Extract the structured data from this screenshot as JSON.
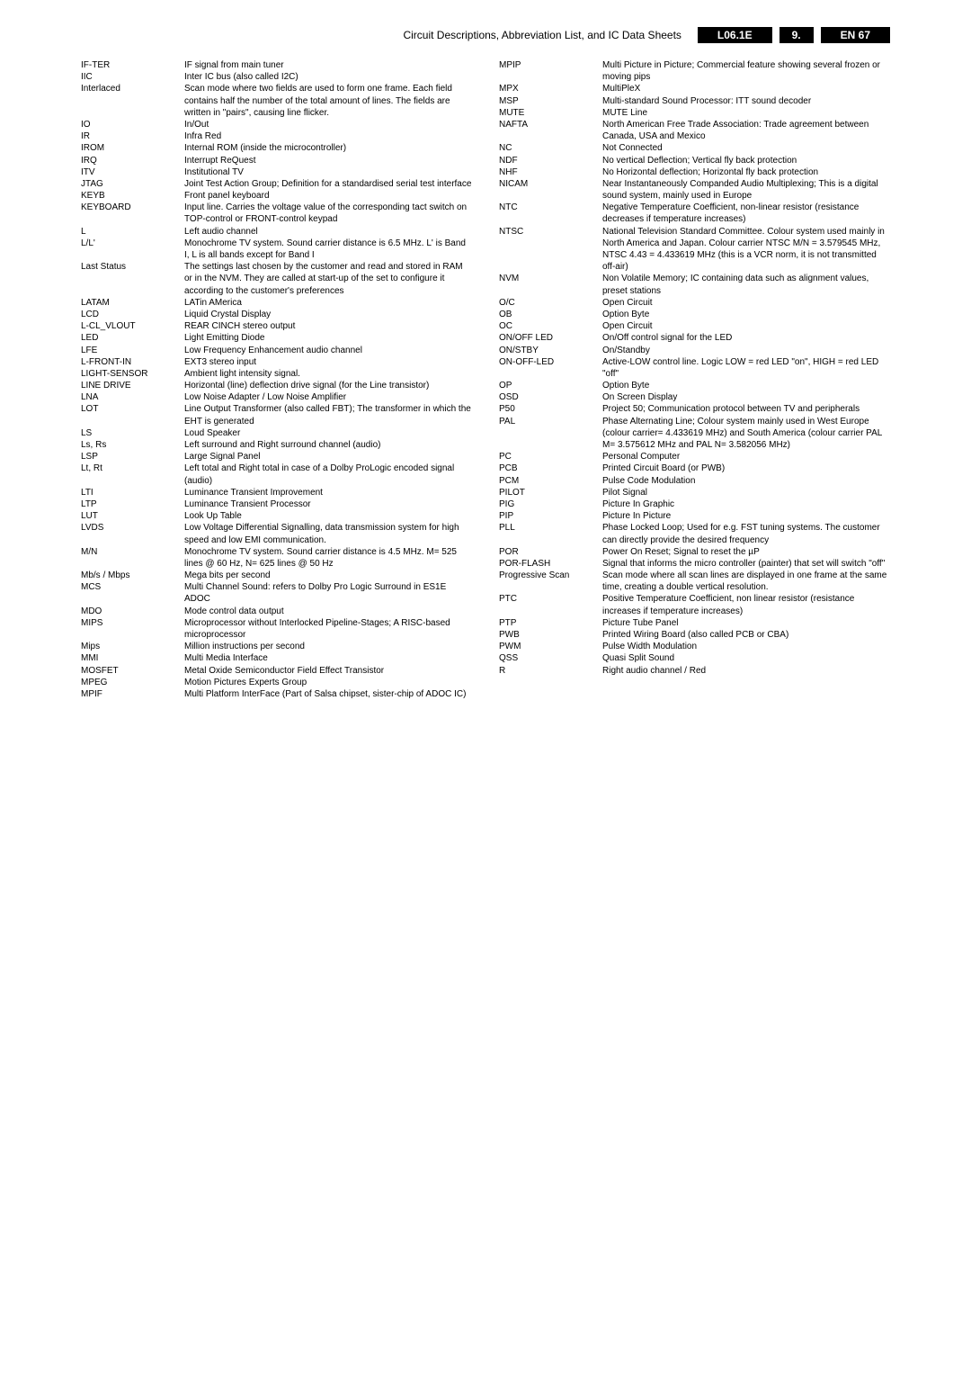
{
  "header": {
    "title": "Circuit Descriptions, Abbreviation List, and IC Data Sheets",
    "model": "L06.1E",
    "section": "9.",
    "page": "EN 67"
  },
  "left_col": [
    {
      "a": "IF-TER",
      "d": "IF signal from main tuner"
    },
    {
      "a": "IIC",
      "d": "Inter IC bus (also called I2C)"
    },
    {
      "a": "Interlaced",
      "d": "Scan mode where two fields are used to form one frame. Each field contains half the number of the total amount of lines. The fields are written in \"pairs\", causing line flicker."
    },
    {
      "a": "IO",
      "d": "In/Out"
    },
    {
      "a": "IR",
      "d": "Infra Red"
    },
    {
      "a": "IROM",
      "d": "Internal ROM (inside the microcontroller)"
    },
    {
      "a": "IRQ",
      "d": "Interrupt ReQuest"
    },
    {
      "a": "ITV",
      "d": "Institutional TV"
    },
    {
      "a": "JTAG",
      "d": "Joint Test Action Group; Definition for a standardised serial test interface"
    },
    {
      "a": "KEYB",
      "d": "Front panel keyboard"
    },
    {
      "a": "KEYBOARD",
      "d": "Input line. Carries the voltage value of the corresponding tact switch on TOP-control or FRONT-control keypad"
    },
    {
      "a": "L",
      "d": "Left audio channel"
    },
    {
      "a": "L/L'",
      "d": "Monochrome TV system. Sound carrier distance is 6.5 MHz. L' is Band I, L is all bands except for Band I"
    },
    {
      "a": "Last Status",
      "d": "The settings last chosen by the customer and read and stored in RAM or in the NVM. They are called at start-up of the set to configure it according to the customer's preferences"
    },
    {
      "a": "LATAM",
      "d": "LATin AMerica"
    },
    {
      "a": "LCD",
      "d": "Liquid Crystal Display"
    },
    {
      "a": "L-CL_VLOUT",
      "d": "REAR CINCH stereo output"
    },
    {
      "a": "LED",
      "d": "Light Emitting Diode"
    },
    {
      "a": "LFE",
      "d": "Low Frequency Enhancement audio channel"
    },
    {
      "a": "L-FRONT-IN",
      "d": "EXT3 stereo input"
    },
    {
      "a": "LIGHT-SENSOR",
      "d": "Ambient light intensity signal."
    },
    {
      "a": "LINE DRIVE",
      "d": "Horizontal (line) deflection drive signal (for the Line transistor)"
    },
    {
      "a": "LNA",
      "d": "Low Noise Adapter / Low Noise Amplifier"
    },
    {
      "a": "LOT",
      "d": "Line Output Transformer (also called FBT); The transformer in which the EHT is generated"
    },
    {
      "a": "LS",
      "d": "Loud Speaker"
    },
    {
      "a": "Ls, Rs",
      "d": "Left surround and Right surround channel (audio)"
    },
    {
      "a": "LSP",
      "d": "Large Signal Panel"
    },
    {
      "a": "Lt, Rt",
      "d": "Left total and Right total in case of a Dolby ProLogic encoded signal (audio)"
    },
    {
      "a": "LTI",
      "d": "Luminance Transient Improvement"
    },
    {
      "a": "LTP",
      "d": "Luminance Transient Processor"
    },
    {
      "a": "LUT",
      "d": "Look Up Table"
    },
    {
      "a": "LVDS",
      "d": "Low Voltage Differential Signalling, data transmission system for high speed and low EMI communication."
    },
    {
      "a": "M/N",
      "d": "Monochrome TV system. Sound carrier distance is 4.5 MHz. M= 525 lines @ 60 Hz, N= 625 lines @ 50 Hz"
    },
    {
      "a": "Mb/s / Mbps",
      "d": "Mega bits per second"
    },
    {
      "a": "MCS",
      "d": "Multi Channel Sound: refers to Dolby Pro Logic Surround in ES1E ADOC"
    },
    {
      "a": "MDO",
      "d": "Mode control data output"
    },
    {
      "a": "MIPS",
      "d": "Microprocessor without Interlocked Pipeline-Stages; A RISC-based microprocessor"
    },
    {
      "a": "Mips",
      "d": "Million instructions per second"
    },
    {
      "a": "MMI",
      "d": "Multi Media Interface"
    },
    {
      "a": "MOSFET",
      "d": "Metal Oxide Semiconductor Field Effect Transistor"
    },
    {
      "a": "MPEG",
      "d": "Motion Pictures Experts Group"
    },
    {
      "a": "MPIF",
      "d": "Multi Platform InterFace (Part of Salsa chipset, sister-chip of ADOC IC)"
    }
  ],
  "right_col": [
    {
      "a": "MPIP",
      "d": "Multi Picture in Picture; Commercial feature showing several frozen or moving pips"
    },
    {
      "a": "MPX",
      "d": "MultiPleX"
    },
    {
      "a": "MSP",
      "d": "Multi-standard Sound Processor: ITT sound decoder"
    },
    {
      "a": "MUTE",
      "d": "MUTE Line"
    },
    {
      "a": "NAFTA",
      "d": "North American Free Trade Association: Trade agreement between Canada, USA and Mexico"
    },
    {
      "a": "NC",
      "d": "Not Connected"
    },
    {
      "a": "NDF",
      "d": "No vertical Deflection; Vertical fly back protection"
    },
    {
      "a": "NHF",
      "d": "No Horizontal deflection; Horizontal fly back protection"
    },
    {
      "a": "NICAM",
      "d": "Near Instantaneously Companded Audio Multiplexing; This is a digital sound system, mainly used in Europe"
    },
    {
      "a": "NTC",
      "d": "Negative Temperature Coefficient, non-linear resistor (resistance decreases if temperature increases)"
    },
    {
      "a": "NTSC",
      "d": "National Television Standard Committee. Colour system used mainly in North America and Japan. Colour carrier NTSC M/N = 3.579545 MHz, NTSC 4.43 = 4.433619 MHz (this is a VCR norm, it is not transmitted off-air)"
    },
    {
      "a": "NVM",
      "d": "Non Volatile Memory; IC containing data such as alignment values, preset stations"
    },
    {
      "a": "O/C",
      "d": "Open Circuit"
    },
    {
      "a": "OB",
      "d": "Option Byte"
    },
    {
      "a": "OC",
      "d": "Open Circuit"
    },
    {
      "a": "ON/OFF LED",
      "d": "On/Off control signal for the LED"
    },
    {
      "a": "ON/STBY",
      "d": "On/Standby"
    },
    {
      "a": "ON-OFF-LED",
      "d": "Active-LOW control line. Logic LOW = red LED \"on\", HIGH = red LED \"off\""
    },
    {
      "a": "OP",
      "d": "Option Byte"
    },
    {
      "a": "OSD",
      "d": "On Screen Display"
    },
    {
      "a": "P50",
      "d": "Project 50; Communication protocol between TV and peripherals"
    },
    {
      "a": "PAL",
      "d": "Phase Alternating Line; Colour system mainly used in West Europe (colour carrier= 4.433619 MHz) and South America (colour carrier PAL M= 3.575612 MHz and PAL N= 3.582056 MHz)"
    },
    {
      "a": "PC",
      "d": "Personal Computer"
    },
    {
      "a": "PCB",
      "d": "Printed Circuit Board (or PWB)"
    },
    {
      "a": "PCM",
      "d": "Pulse Code Modulation"
    },
    {
      "a": "PILOT",
      "d": "Pilot Signal"
    },
    {
      "a": "PIG",
      "d": "Picture In Graphic"
    },
    {
      "a": "PIP",
      "d": "Picture In Picture"
    },
    {
      "a": "PLL",
      "d": "Phase Locked Loop; Used for e.g. FST tuning systems. The customer can directly provide the desired frequency"
    },
    {
      "a": "POR",
      "d": "Power On Reset; Signal to reset the µP"
    },
    {
      "a": "POR-FLASH",
      "d": "Signal that informs the micro controller (painter) that set will switch \"off\""
    },
    {
      "a": "Progressive Scan",
      "d": "Scan mode where all scan lines are displayed in one frame at the same time, creating a double vertical resolution."
    },
    {
      "a": "PTC",
      "d": "Positive Temperature Coefficient, non linear resistor (resistance increases if temperature increases)"
    },
    {
      "a": "PTP",
      "d": "Picture Tube Panel"
    },
    {
      "a": "PWB",
      "d": "Printed Wiring Board (also called PCB or CBA)"
    },
    {
      "a": "PWM",
      "d": "Pulse Width Modulation"
    },
    {
      "a": "QSS",
      "d": "Quasi Split Sound"
    },
    {
      "a": "R",
      "d": "Right audio channel / Red"
    }
  ]
}
